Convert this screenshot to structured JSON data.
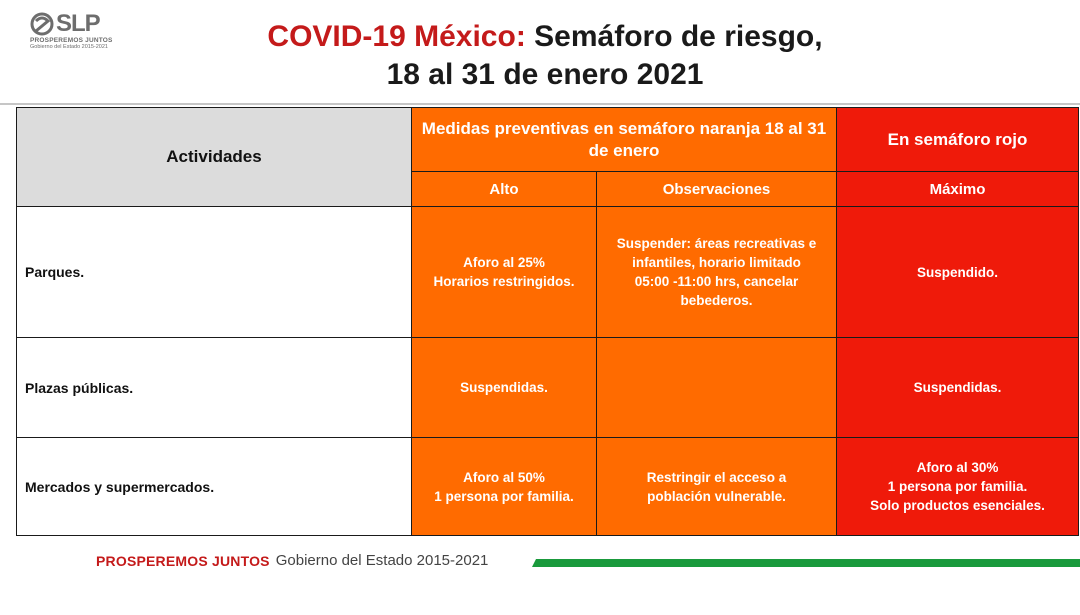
{
  "logo": {
    "name": "SLP",
    "tagline": "PROSPEREMOS JUNTOS",
    "subtitle": "Gobierno del Estado 2015-2021"
  },
  "title": {
    "accent": "COVID-19 México:",
    "rest": "Semáforo de riesgo,",
    "line2": "18 al 31 de enero 2021"
  },
  "table": {
    "header_activities": "Actividades",
    "header_orange": "Medidas preventivas en semáforo naranja 18 al 31 de enero",
    "header_red": "En semáforo rojo",
    "sub_alto": "Alto",
    "sub_obs": "Observaciones",
    "sub_max": "Máximo",
    "rows": [
      {
        "activity": "Parques.",
        "alto": "Aforo al 25%\nHorarios restringidos.",
        "obs": "Suspender: áreas recreativas e\ninfantiles, horario limitado\n05:00 -11:00 hrs, cancelar\nbebederos.",
        "max": "Suspendido."
      },
      {
        "activity": "Plazas públicas.",
        "alto": "Suspendidas.",
        "obs": "",
        "max": "Suspendidas."
      },
      {
        "activity": "Mercados y supermercados.",
        "alto": "Aforo al 50%\n1 persona por familia.",
        "obs": "Restringir el acceso a\npoblación vulnerable.",
        "max": "Aforo al 30%\n1 persona por familia.\nSolo productos esenciales."
      }
    ]
  },
  "footer": {
    "brand": "PROSPEREMOS JUNTOS",
    "gov": "Gobierno del Estado 2015-2021"
  },
  "colors": {
    "orange": "#ff6b00",
    "red": "#ef1a0a",
    "accent_red": "#c41a1a",
    "green": "#1a9a3c"
  }
}
